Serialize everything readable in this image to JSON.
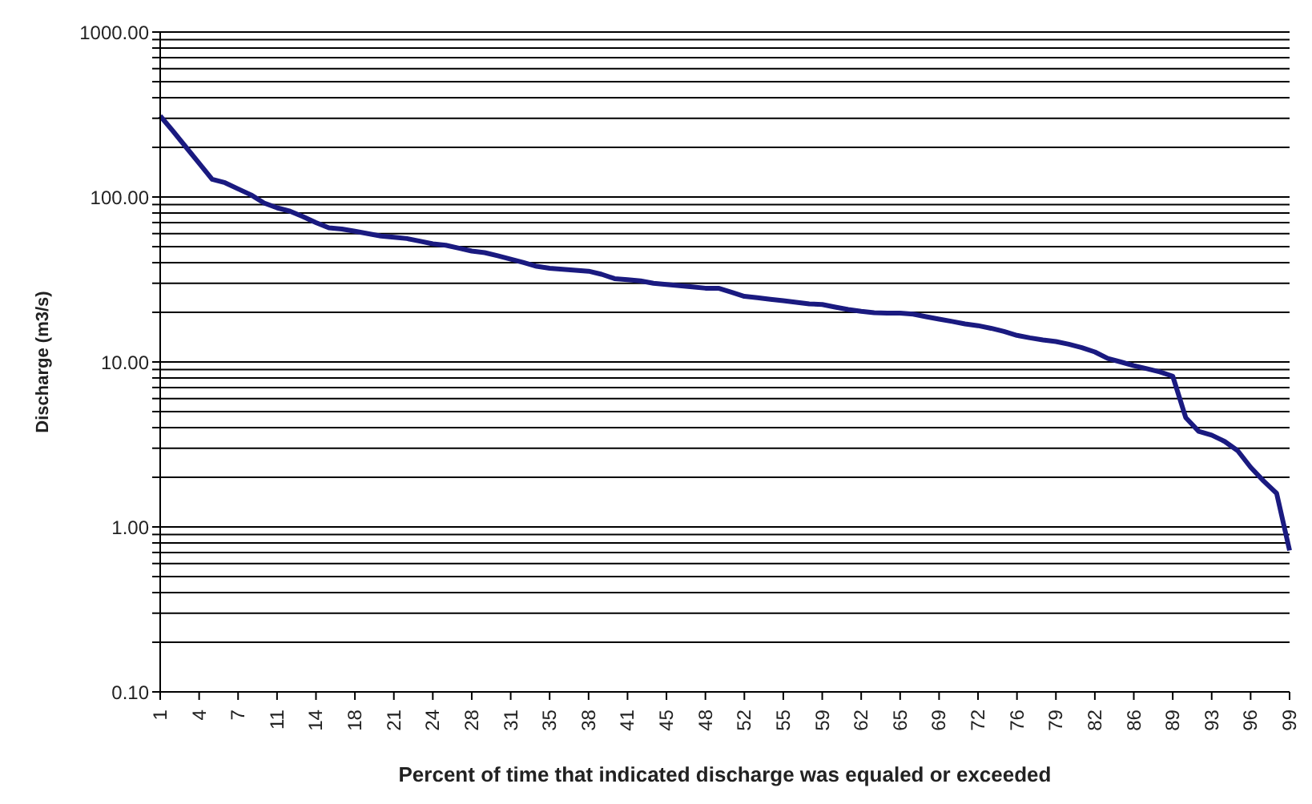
{
  "chart_data": {
    "type": "line",
    "xlabel": "Percent of time that indicated discharge was equaled or exceeded",
    "ylabel": "Discharge  (m3/s)",
    "categories": [
      "1",
      null,
      null,
      "4",
      null,
      null,
      "7",
      null,
      null,
      "11",
      null,
      null,
      "14",
      null,
      null,
      "18",
      null,
      null,
      "21",
      null,
      null,
      "24",
      null,
      null,
      "28",
      null,
      null,
      "31",
      null,
      null,
      "35",
      null,
      null,
      "38",
      null,
      null,
      "41",
      null,
      null,
      "45",
      null,
      null,
      "48",
      null,
      null,
      "52",
      null,
      null,
      "55",
      null,
      null,
      "59",
      null,
      null,
      "62",
      null,
      null,
      "65",
      null,
      null,
      "69",
      null,
      null,
      "72",
      null,
      null,
      "76",
      null,
      null,
      "79",
      null,
      null,
      "82",
      null,
      null,
      "86",
      null,
      null,
      "89",
      null,
      null,
      "93",
      null,
      null,
      "96",
      null,
      null,
      "99"
    ],
    "series": [
      {
        "color": "#1a1a80",
        "values": [
          310,
          250,
          200,
          160,
          128,
          122,
          112,
          103,
          92,
          86,
          82,
          76,
          70,
          65,
          64,
          62,
          60,
          58,
          57,
          56,
          54,
          52,
          51,
          49,
          47,
          46,
          44,
          42,
          40,
          38,
          37,
          36.5,
          36,
          35.5,
          34,
          32,
          31.5,
          31,
          30,
          29.5,
          29,
          28.5,
          28,
          28,
          26.5,
          25,
          24.5,
          24,
          23.5,
          23,
          22.5,
          22.3,
          21.5,
          20.8,
          20.3,
          19.9,
          19.8,
          19.8,
          19.5,
          18.8,
          18.2,
          17.6,
          17,
          16.6,
          16,
          15.3,
          14.5,
          14,
          13.6,
          13.3,
          12.8,
          12.2,
          11.5,
          10.5,
          10,
          9.5,
          9.1,
          8.7,
          8.2,
          4.6,
          3.8,
          3.6,
          3.3,
          2.9,
          2.3,
          1.9,
          1.6,
          0.72
        ]
      }
    ],
    "log": "y",
    "ylim": [
      0.1,
      1000
    ],
    "yticks": [
      {
        "value": 0.1,
        "label": "0.10"
      },
      {
        "value": 0.2,
        "label": null
      },
      {
        "value": 0.3,
        "label": null
      },
      {
        "value": 0.4,
        "label": null
      },
      {
        "value": 0.5,
        "label": null
      },
      {
        "value": 0.6,
        "label": null
      },
      {
        "value": 0.7,
        "label": null
      },
      {
        "value": 0.8,
        "label": null
      },
      {
        "value": 0.9,
        "label": null
      },
      {
        "value": 1,
        "label": "1.00"
      },
      {
        "value": 2,
        "label": null
      },
      {
        "value": 3,
        "label": null
      },
      {
        "value": 4,
        "label": null
      },
      {
        "value": 5,
        "label": null
      },
      {
        "value": 6,
        "label": null
      },
      {
        "value": 7,
        "label": null
      },
      {
        "value": 8,
        "label": null
      },
      {
        "value": 9,
        "label": null
      },
      {
        "value": 10,
        "label": "10.00"
      },
      {
        "value": 20,
        "label": null
      },
      {
        "value": 30,
        "label": null
      },
      {
        "value": 40,
        "label": null
      },
      {
        "value": 50,
        "label": null
      },
      {
        "value": 60,
        "label": null
      },
      {
        "value": 70,
        "label": null
      },
      {
        "value": 80,
        "label": null
      },
      {
        "value": 90,
        "label": null
      },
      {
        "value": 100,
        "label": "100.00"
      },
      {
        "value": 200,
        "label": null
      },
      {
        "value": 300,
        "label": null
      },
      {
        "value": 400,
        "label": null
      },
      {
        "value": 500,
        "label": null
      },
      {
        "value": 600,
        "label": null
      },
      {
        "value": 700,
        "label": null
      },
      {
        "value": 800,
        "label": null
      },
      {
        "value": 900,
        "label": null
      },
      {
        "value": 1000,
        "label": "1000.00"
      }
    ],
    "grid": "y",
    "legend": false,
    "marker": "none",
    "line_style": "solid"
  }
}
